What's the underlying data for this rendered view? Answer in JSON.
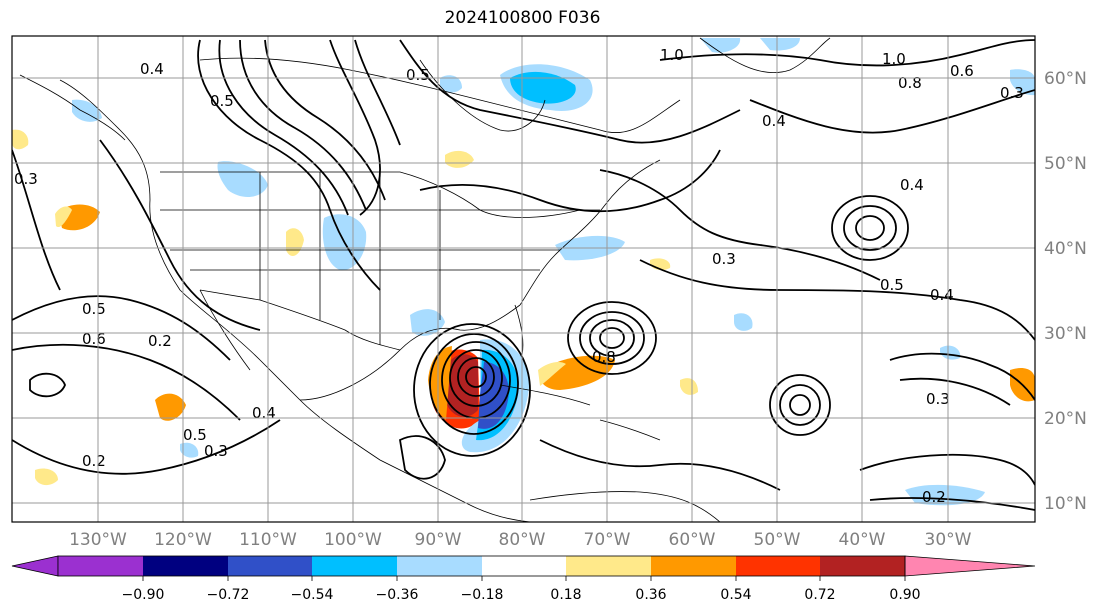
{
  "title": "2024100800 F036",
  "longitude_labels": [
    "130°W",
    "120°W",
    "110°W",
    "100°W",
    "90°W",
    "80°W",
    "70°W",
    "60°W",
    "50°W",
    "40°W",
    "30°W"
  ],
  "latitude_labels": [
    "60°N",
    "50°N",
    "40°N",
    "30°N",
    "20°N",
    "10°N"
  ],
  "colorbar": {
    "ticks": [
      "−0.90",
      "−0.72",
      "−0.54",
      "−0.36",
      "−0.18",
      "0.18",
      "0.36",
      "0.54",
      "0.72",
      "0.90"
    ],
    "colors": [
      "#9b30d0",
      "#000080",
      "#3050c8",
      "#00bfff",
      "#a8dcff",
      "#ffffff",
      "#ffe98a",
      "#ff9900",
      "#ff3300",
      "#b22222",
      "#ff85b0"
    ]
  },
  "contour_labels": [
    "0.4",
    "0.5",
    "1.0",
    "1.0",
    "0.8",
    "0.6",
    "0.3",
    "0.4",
    "0.5",
    "0.3",
    "0.4",
    "0.6",
    "0.2",
    "0.4",
    "0.3",
    "0.2",
    "0.2",
    "0.4",
    "0.3",
    "0.5",
    "0.3",
    "0.8",
    "0.5",
    "0.5"
  ],
  "geo_colors": {
    "land_line": "#000000",
    "grid": "#999999",
    "contour": "#000000"
  }
}
